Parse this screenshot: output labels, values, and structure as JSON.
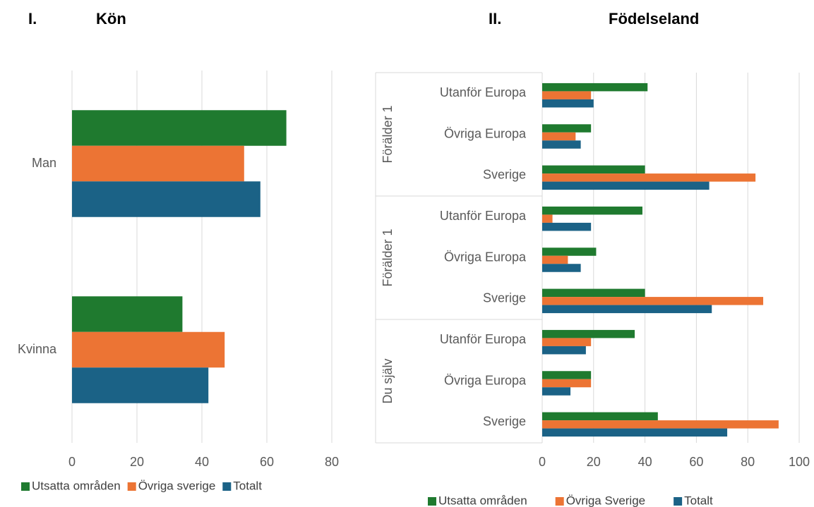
{
  "chart_data": [
    {
      "type": "bar",
      "orientation": "horizontal",
      "title_number": "I.",
      "title": "Kön",
      "categories": [
        "Man",
        "Kvinna"
      ],
      "series": [
        {
          "name": "Utsatta områden",
          "color": "#1f7a2f",
          "values": [
            66,
            34
          ]
        },
        {
          "name": "Övriga sverige",
          "color": "#ec7434",
          "values": [
            53,
            47
          ]
        },
        {
          "name": "Totalt",
          "color": "#1b6286",
          "values": [
            58,
            42
          ]
        }
      ],
      "xlim": [
        0,
        80
      ],
      "xticks": [
        0,
        20,
        40,
        60,
        80
      ],
      "grid": true,
      "legend": "bottom"
    },
    {
      "type": "bar",
      "orientation": "horizontal",
      "title_number": "II.",
      "title": "Födelseland",
      "category_groups": [
        {
          "name": "Förälder 1",
          "categories": [
            "Utanför Europa",
            "Övriga Europa",
            "Sverige"
          ]
        },
        {
          "name": "Förälder 1",
          "categories": [
            "Utanför Europa",
            "Övriga Europa",
            "Sverige"
          ]
        },
        {
          "name": "Du själv",
          "categories": [
            "Utanför Europa",
            "Övriga Europa",
            "Sverige"
          ]
        }
      ],
      "series": [
        {
          "name": "Utsatta områden",
          "color": "#1f7a2f",
          "values": [
            41,
            19,
            40,
            39,
            21,
            40,
            36,
            19,
            45
          ]
        },
        {
          "name": "Övriga Sverige",
          "color": "#ec7434",
          "values": [
            19,
            13,
            83,
            4,
            10,
            86,
            19,
            19,
            92
          ]
        },
        {
          "name": "Totalt",
          "color": "#1b6286",
          "values": [
            20,
            15,
            65,
            19,
            15,
            66,
            17,
            11,
            72
          ]
        }
      ],
      "xlim": [
        0,
        100
      ],
      "xticks": [
        0,
        20,
        40,
        60,
        80,
        100
      ],
      "grid": true,
      "legend": "bottom"
    }
  ]
}
